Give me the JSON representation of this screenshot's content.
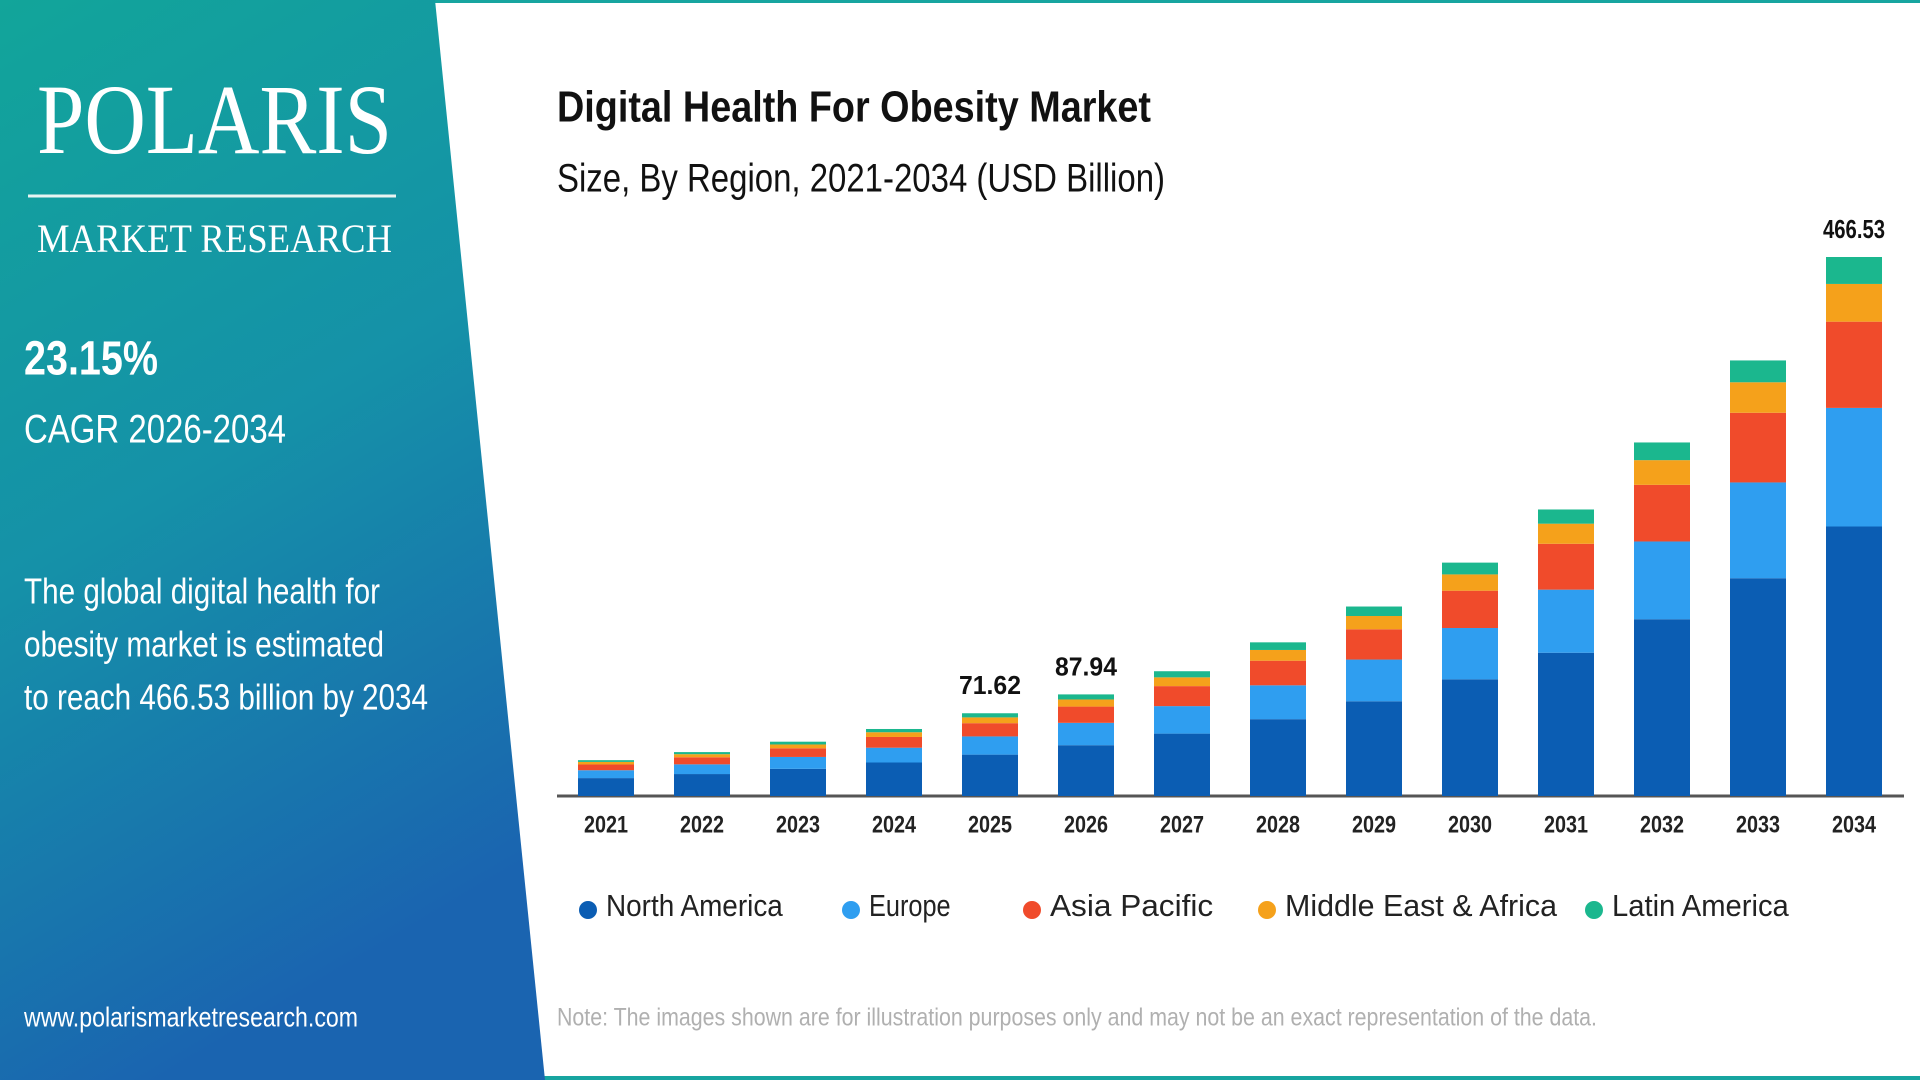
{
  "logo": {
    "name": "POLARIS",
    "tagline": "MARKET RESEARCH"
  },
  "sidebar": {
    "cagr": "23.15%",
    "cagr_label": "CAGR 2026-2034",
    "summary": [
      "The global digital health for",
      "obesity market is estimated",
      "to reach 466.53 billion by 2034"
    ],
    "website": "www.polarismarketresearch.com"
  },
  "chart_data": {
    "type": "bar",
    "stacked": true,
    "title": "Digital Health For Obesity Market",
    "subtitle": "Size, By Region, 2021-2034 (USD Billion)",
    "categories": [
      "2021",
      "2022",
      "2023",
      "2024",
      "2025",
      "2026",
      "2027",
      "2028",
      "2029",
      "2030",
      "2031",
      "2032",
      "2033",
      "2034"
    ],
    "series": [
      {
        "name": "North America",
        "color": "#0b5db3",
        "values": [
          15.5,
          19.0,
          23.5,
          29.0,
          35.81,
          43.97,
          54.0,
          66.5,
          82.0,
          101.0,
          124.0,
          153.0,
          188.5,
          233.27
        ]
      },
      {
        "name": "Europe",
        "color": "#2f9ef0",
        "values": [
          6.8,
          8.4,
          10.3,
          12.8,
          15.76,
          19.35,
          23.8,
          29.3,
          36.1,
          44.4,
          54.6,
          67.3,
          82.9,
          102.64
        ]
      },
      {
        "name": "Asia Pacific",
        "color": "#f04b2b",
        "values": [
          5.0,
          6.1,
          7.5,
          9.3,
          11.46,
          14.07,
          17.3,
          21.3,
          26.2,
          32.3,
          39.7,
          49.0,
          60.3,
          74.64
        ]
      },
      {
        "name": "Middle East & Africa",
        "color": "#f5a11b",
        "values": [
          2.2,
          2.7,
          3.3,
          4.1,
          5.01,
          6.16,
          7.6,
          9.3,
          11.5,
          14.1,
          17.4,
          21.4,
          26.4,
          32.66
        ]
      },
      {
        "name": "Latin America",
        "color": "#1bb78e",
        "values": [
          1.5,
          1.8,
          2.4,
          2.8,
          3.58,
          4.39,
          5.3,
          6.6,
          8.2,
          10.2,
          12.3,
          15.3,
          18.9,
          23.32
        ]
      }
    ],
    "annotations": [
      {
        "category": "2025",
        "value": 71.62
      },
      {
        "category": "2026",
        "value": 87.94
      },
      {
        "category": "2034",
        "value": 466.53
      }
    ],
    "note": "Note: The images shown are for illustration purposes only and may not be an exact representation of the data."
  }
}
